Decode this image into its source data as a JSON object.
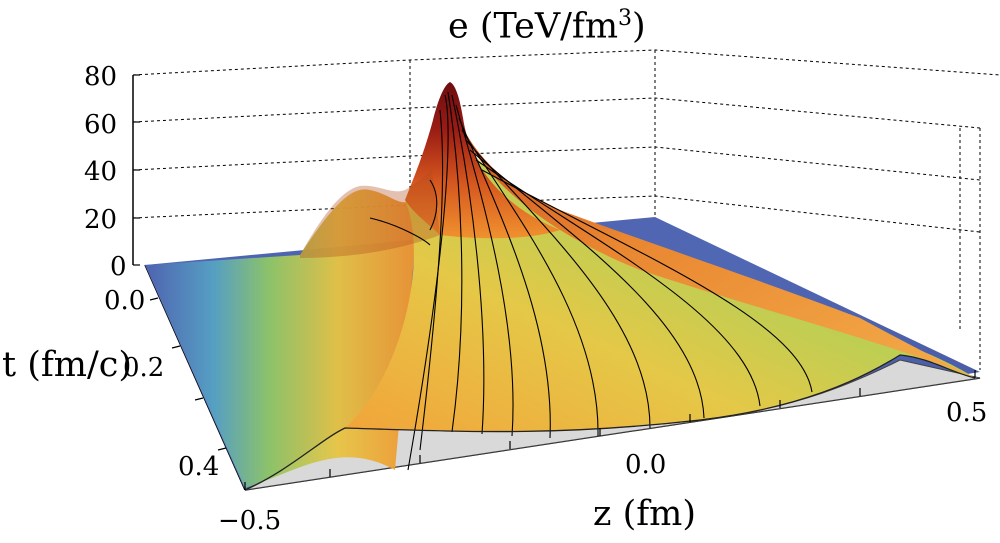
{
  "chart_data": {
    "type": "surface",
    "title": "e (TeV/fm³)",
    "zlabel_text": "e (TeV/fm",
    "zlabel_sup": "3",
    "zlabel_close": ")",
    "xlabel": "z (fm)",
    "ylabel": "t (fm/c)",
    "z_axis": {
      "range": [
        0,
        80
      ],
      "ticks": [
        "80",
        "60",
        "40",
        "20",
        "0"
      ]
    },
    "x_axis": {
      "range": [
        -0.5,
        0.5
      ],
      "ticks": [
        "−0.5",
        "0.0",
        "0.5"
      ]
    },
    "t_axis": {
      "range": [
        0.0,
        0.45
      ],
      "ticks": [
        "0.0",
        "0.2",
        "0.4"
      ]
    },
    "peak": {
      "z": -0.1,
      "t": 0.02,
      "e": 78
    },
    "secondary_peak": {
      "z": -0.2,
      "t": 0.05,
      "e": 35
    },
    "colors": {
      "low": "#4f63b0",
      "mid_low": "#8fc766",
      "mid": "#e7c443",
      "mid_high": "#f0912f",
      "high": "#7e0f12",
      "floor": "#d9d9d9"
    },
    "grid": true
  }
}
